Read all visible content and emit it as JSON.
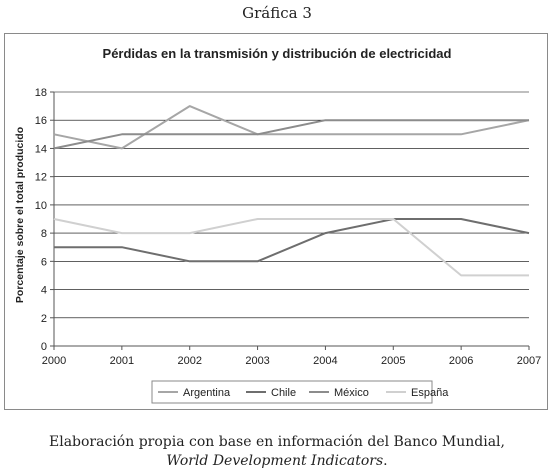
{
  "caption": "Gráfica 3",
  "source_line1": "Elaboración propia con base en información del Banco Mundial,",
  "source_line2_italic": "World Development Indicators",
  "source_line2_end": ".",
  "chart_data": {
    "type": "line",
    "title": "Pérdidas en la transmisión y distribución de electricidad",
    "xlabel": "",
    "ylabel": "Porcentaje sobre el total producido",
    "x": [
      "2000",
      "2001",
      "2002",
      "2003",
      "2004",
      "2005",
      "2006",
      "2007"
    ],
    "ylim": [
      0,
      18
    ],
    "yticks": [
      0,
      2,
      4,
      6,
      8,
      10,
      12,
      14,
      16,
      18
    ],
    "grid": true,
    "legend_position": "bottom",
    "series": [
      {
        "name": "Argentina",
        "color": "#a6a6a6",
        "values": [
          15,
          14,
          17,
          15,
          15,
          15,
          15,
          16
        ]
      },
      {
        "name": "Chile",
        "color": "#6e6e6e",
        "values": [
          7,
          7,
          6,
          6,
          8,
          9,
          9,
          8
        ]
      },
      {
        "name": "México",
        "color": "#8c8c8c",
        "values": [
          14,
          15,
          15,
          15,
          16,
          16,
          16,
          16
        ]
      },
      {
        "name": "España",
        "color": "#d0d0d0",
        "values": [
          9,
          8,
          8,
          9,
          9,
          9,
          5,
          5
        ]
      }
    ]
  }
}
